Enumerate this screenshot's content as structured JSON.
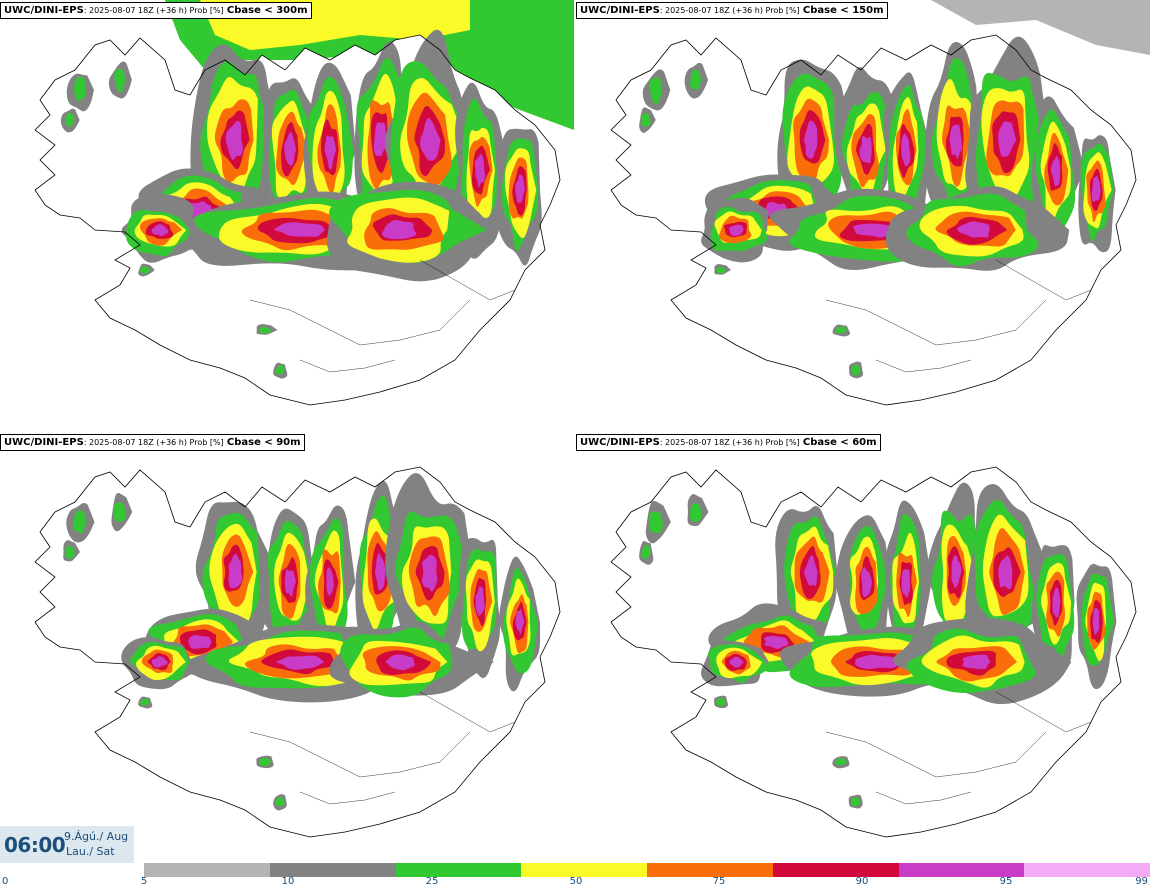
{
  "panels": [
    {
      "model": "UWC/DINI-EPS",
      "meta": ": 2025-08-07 18Z (+36 h) Prob [%]",
      "field": "Cbase < 300m"
    },
    {
      "model": "UWC/DINI-EPS",
      "meta": ": 2025-08-07 18Z (+36 h) Prob [%]",
      "field": "Cbase < 150m"
    },
    {
      "model": "UWC/DINI-EPS",
      "meta": ": 2025-08-07 18Z (+36 h) Prob [%]",
      "field": "Cbase < 90m"
    },
    {
      "model": "UWC/DINI-EPS",
      "meta": ": 2025-08-07 18Z (+36 h) Prob [%]",
      "field": "Cbase < 60m"
    }
  ],
  "time": {
    "value": "06:00",
    "date_line1": "9.Ágú./ Aug",
    "date_line2": "Lau./ Sat"
  },
  "colorbar": {
    "ticks": [
      "0",
      "5",
      "10",
      "25",
      "50",
      "75",
      "90",
      "95",
      "99"
    ],
    "colors": [
      "#b4b4b4",
      "#828282",
      "#32c832",
      "#fafa28",
      "#fa6e0a",
      "#d20a3c",
      "#c83cc8",
      "#f5aaf5"
    ]
  },
  "colors": {
    "land_outline": "#000000",
    "background": "#ffffff"
  }
}
